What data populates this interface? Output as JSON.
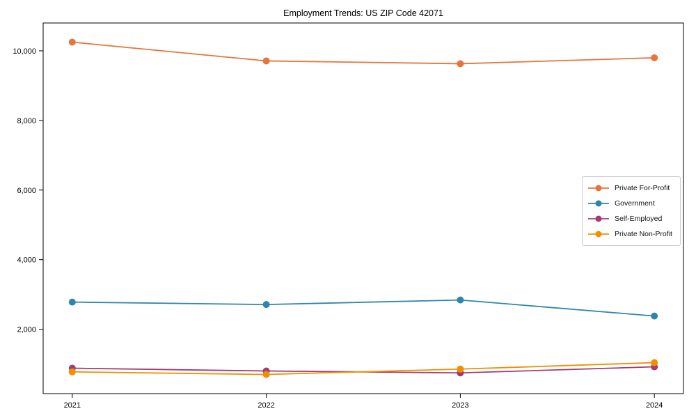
{
  "chart_data": {
    "type": "line",
    "title": "Employment Trends: US ZIP Code 42071",
    "categories": [
      2021,
      2022,
      2023,
      2024
    ],
    "series": [
      {
        "name": "Private For-Profit",
        "color": "#E8743B",
        "values": [
          10250,
          9710,
          9630,
          9800
        ]
      },
      {
        "name": "Government",
        "color": "#2E86AB",
        "values": [
          2780,
          2710,
          2840,
          2380
        ]
      },
      {
        "name": "Self-Employed",
        "color": "#A23B72",
        "values": [
          880,
          800,
          745,
          920
        ]
      },
      {
        "name": "Private Non-Profit",
        "color": "#F18F01",
        "values": [
          775,
          700,
          855,
          1040
        ]
      }
    ],
    "xlabel": "",
    "ylabel": "",
    "xticks": [
      "2021",
      "2022",
      "2023",
      "2024"
    ],
    "yticks": [
      2000,
      4000,
      6000,
      8000,
      10000
    ],
    "ytick_labels": [
      "2,000",
      "4,000",
      "6,000",
      "8,000",
      "10,000"
    ],
    "ylim": [
      150,
      10800
    ],
    "xlim": [
      2020.85,
      2024.15
    ],
    "grid": false,
    "legend_position": "center right",
    "marker": "circle",
    "axis_color": "#000000"
  }
}
